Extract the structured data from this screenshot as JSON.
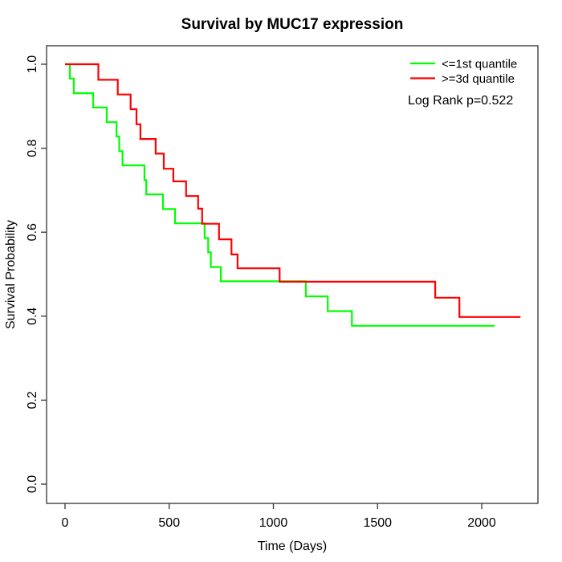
{
  "colors": {
    "background": "#ffffff",
    "axis": "#333333",
    "text": "#000000",
    "curve_low": "#00ff00",
    "curve_high": "#ff0000"
  },
  "chart_data": {
    "type": "line",
    "variant": "kaplan_meier_step",
    "title": "Survival by MUC17 expression",
    "xlabel": "Time (Days)",
    "ylabel": "Survival Probability",
    "xlim": [
      0,
      2270
    ],
    "ylim": [
      0,
      1.0
    ],
    "grid": false,
    "legend_position": "top-right",
    "annotation": "Log Rank p=0.522",
    "x_ticks": {
      "values": [
        0,
        500,
        1000,
        1500,
        2000
      ],
      "labels": [
        "0",
        "500",
        "1000",
        "1500",
        "2000"
      ]
    },
    "y_ticks": {
      "values": [
        0.0,
        0.2,
        0.4,
        0.6,
        0.8,
        1.0
      ],
      "labels": [
        "0.0",
        "0.2",
        "0.4",
        "0.6",
        "0.8",
        "1.0"
      ]
    },
    "series": [
      {
        "id": "le-1st-quantile",
        "name": "<=1st quantile",
        "color": "#00ff00",
        "steps": [
          [
            0,
            1.0
          ],
          [
            23,
            0.966
          ],
          [
            42,
            0.931
          ],
          [
            135,
            0.897
          ],
          [
            200,
            0.862
          ],
          [
            247,
            0.828
          ],
          [
            260,
            0.793
          ],
          [
            276,
            0.759
          ],
          [
            381,
            0.724
          ],
          [
            390,
            0.69
          ],
          [
            470,
            0.655
          ],
          [
            528,
            0.621
          ],
          [
            670,
            0.586
          ],
          [
            687,
            0.552
          ],
          [
            700,
            0.517
          ],
          [
            748,
            0.483
          ],
          [
            1156,
            0.447
          ],
          [
            1261,
            0.412
          ],
          [
            1377,
            0.377
          ]
        ],
        "end_time": 2062
      },
      {
        "id": "ge-3d-quantile",
        "name": ">=3d quantile",
        "color": "#ff0000",
        "steps": [
          [
            0,
            1.0
          ],
          [
            160,
            0.963
          ],
          [
            253,
            0.928
          ],
          [
            315,
            0.893
          ],
          [
            343,
            0.857
          ],
          [
            362,
            0.822
          ],
          [
            435,
            0.787
          ],
          [
            474,
            0.751
          ],
          [
            520,
            0.721
          ],
          [
            581,
            0.686
          ],
          [
            639,
            0.656
          ],
          [
            658,
            0.62
          ],
          [
            739,
            0.583
          ],
          [
            799,
            0.547
          ],
          [
            828,
            0.514
          ],
          [
            1030,
            0.482
          ],
          [
            1777,
            0.444
          ],
          [
            1893,
            0.398
          ]
        ],
        "end_time": 2186
      }
    ]
  }
}
